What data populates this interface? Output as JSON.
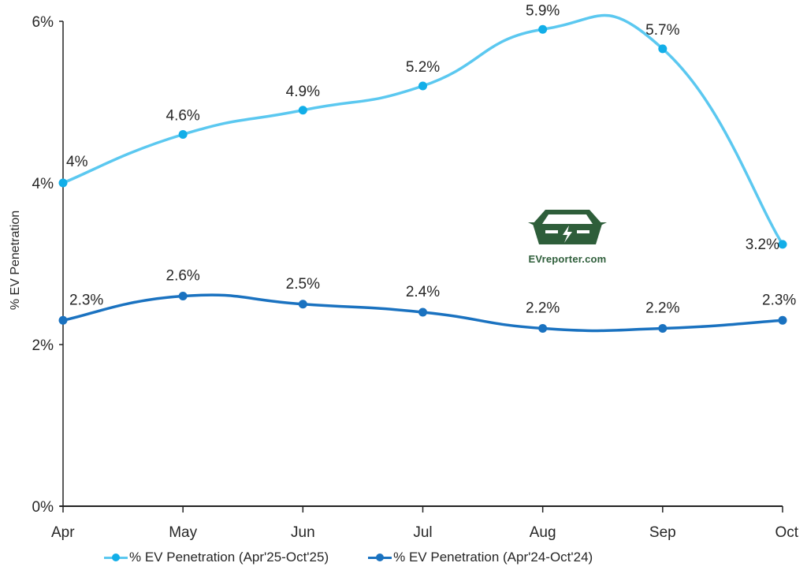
{
  "chart_data": {
    "type": "line",
    "title": "",
    "xlabel": "",
    "ylabel": "% EV Penetration",
    "categories": [
      "Apr",
      "May",
      "Jun",
      "Jul",
      "Aug",
      "Sep",
      "Oct"
    ],
    "ylim": [
      0,
      6
    ],
    "yticks": [
      0,
      2,
      4,
      6
    ],
    "ytick_labels": [
      "0%",
      "2%",
      "4%",
      "6%"
    ],
    "grid": false,
    "legend_position": "bottom",
    "series": [
      {
        "name": "% EV Penetration (Apr'25-Oct'25)",
        "color": "#5bc8f0",
        "marker_color": "#12aee8",
        "values": [
          4.0,
          4.6,
          4.9,
          5.2,
          5.9,
          5.66,
          3.24
        ],
        "labels": [
          "4%",
          "4.6%",
          "4.9%",
          "5.2%",
          "5.9%",
          "5.7%",
          "3.2%"
        ]
      },
      {
        "name": "% EV Penetration (Apr'24-Oct'24)",
        "color": "#1a72c0",
        "marker_color": "#1a72c0",
        "values": [
          2.3,
          2.6,
          2.5,
          2.4,
          2.2,
          2.2,
          2.3
        ],
        "labels": [
          "2.3%",
          "2.6%",
          "2.5%",
          "2.4%",
          "2.2%",
          "2.2%",
          "2.3%"
        ]
      }
    ]
  },
  "watermark": {
    "text": "EVreporter.com",
    "icon": "ev-car-icon",
    "color": "#2e5e3a"
  }
}
